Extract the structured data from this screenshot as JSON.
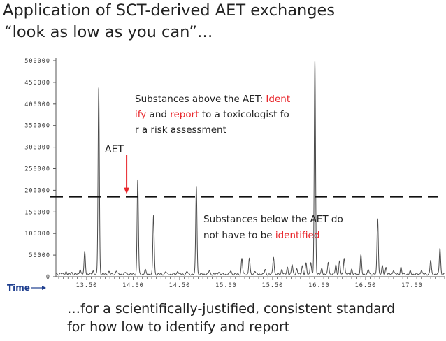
{
  "slide": {
    "title_line1": "Application of SCT-derived AET exchanges",
    "title_line2": "“look as low as you can”…",
    "bottom_line1": "…for a scientifically-justified, consistent standard",
    "bottom_line2": "for how low to identify and  report"
  },
  "annotations": {
    "above_parts": [
      {
        "text": "Substances above the AET:  ",
        "color": "#222222"
      },
      {
        "text": "Ident",
        "color": "#e8252a"
      }
    ],
    "above_line2_parts": [
      {
        "text": "ify",
        "color": "#e8252a"
      },
      {
        "text": " and ",
        "color": "#222222"
      },
      {
        "text": "report",
        "color": "#e8252a"
      },
      {
        "text": " to a  toxicologist fo",
        "color": "#222222"
      }
    ],
    "above_line3": "r a risk assessment",
    "below_line1": "Substances below the AET do",
    "below_line2_parts": [
      {
        "text": "not have to be ",
        "color": "#222222"
      },
      {
        "text": "identified",
        "color": "#e8252a"
      }
    ],
    "aet_label": "AET",
    "arrow_color": "#e8252a"
  },
  "chart_data": {
    "type": "line",
    "xlabel": "Time",
    "xlim": [
      13.17,
      17.35
    ],
    "ylim": [
      0,
      500000
    ],
    "x_ticks": [
      13.5,
      14.0,
      14.5,
      15.0,
      15.5,
      16.0,
      16.5,
      17.0
    ],
    "x_tick_labels": [
      "13.50",
      "14.00",
      "14.50",
      "15.00",
      "15.50",
      "16.00",
      "16.50",
      "17.00"
    ],
    "y_ticks": [
      0,
      50000,
      100000,
      150000,
      200000,
      250000,
      300000,
      350000,
      400000,
      450000,
      500000
    ],
    "y_tick_labels": [
      "0",
      "50000",
      "100000",
      "150000",
      "200000",
      "250000",
      "300000",
      "350000",
      "400000",
      "450000",
      "500000"
    ],
    "aet_threshold": 185000,
    "aet_arrow_x": 13.93,
    "baseline": 6000,
    "peaks": [
      {
        "x": 13.22,
        "y": 9000
      },
      {
        "x": 13.28,
        "y": 12000
      },
      {
        "x": 13.34,
        "y": 10000
      },
      {
        "x": 13.43,
        "y": 18000
      },
      {
        "x": 13.48,
        "y": 58000
      },
      {
        "x": 13.57,
        "y": 14000
      },
      {
        "x": 13.63,
        "y": 439000
      },
      {
        "x": 13.74,
        "y": 12000
      },
      {
        "x": 13.82,
        "y": 14000
      },
      {
        "x": 13.92,
        "y": 10000
      },
      {
        "x": 14.05,
        "y": 225000
      },
      {
        "x": 14.13,
        "y": 16000
      },
      {
        "x": 14.22,
        "y": 143000
      },
      {
        "x": 14.35,
        "y": 12000
      },
      {
        "x": 14.48,
        "y": 14000
      },
      {
        "x": 14.58,
        "y": 12000
      },
      {
        "x": 14.68,
        "y": 211000
      },
      {
        "x": 14.82,
        "y": 14000
      },
      {
        "x": 14.92,
        "y": 12000
      },
      {
        "x": 15.05,
        "y": 14000
      },
      {
        "x": 15.17,
        "y": 42000
      },
      {
        "x": 15.25,
        "y": 43000
      },
      {
        "x": 15.31,
        "y": 14000
      },
      {
        "x": 15.42,
        "y": 16000
      },
      {
        "x": 15.51,
        "y": 47000
      },
      {
        "x": 15.6,
        "y": 18000
      },
      {
        "x": 15.66,
        "y": 22000
      },
      {
        "x": 15.71,
        "y": 28000
      },
      {
        "x": 15.76,
        "y": 18000
      },
      {
        "x": 15.82,
        "y": 26000
      },
      {
        "x": 15.86,
        "y": 30000
      },
      {
        "x": 15.91,
        "y": 34000
      },
      {
        "x": 15.955,
        "y": 500000
      },
      {
        "x": 16.03,
        "y": 20000
      },
      {
        "x": 16.1,
        "y": 34000
      },
      {
        "x": 16.18,
        "y": 28000
      },
      {
        "x": 16.22,
        "y": 35000
      },
      {
        "x": 16.27,
        "y": 45000
      },
      {
        "x": 16.35,
        "y": 18000
      },
      {
        "x": 16.45,
        "y": 49000
      },
      {
        "x": 16.53,
        "y": 16000
      },
      {
        "x": 16.63,
        "y": 136000
      },
      {
        "x": 16.68,
        "y": 24000
      },
      {
        "x": 16.72,
        "y": 22000
      },
      {
        "x": 16.8,
        "y": 16000
      },
      {
        "x": 16.88,
        "y": 22000
      },
      {
        "x": 16.98,
        "y": 12000
      },
      {
        "x": 17.1,
        "y": 16000
      },
      {
        "x": 17.2,
        "y": 38000
      },
      {
        "x": 17.3,
        "y": 67000
      }
    ]
  }
}
